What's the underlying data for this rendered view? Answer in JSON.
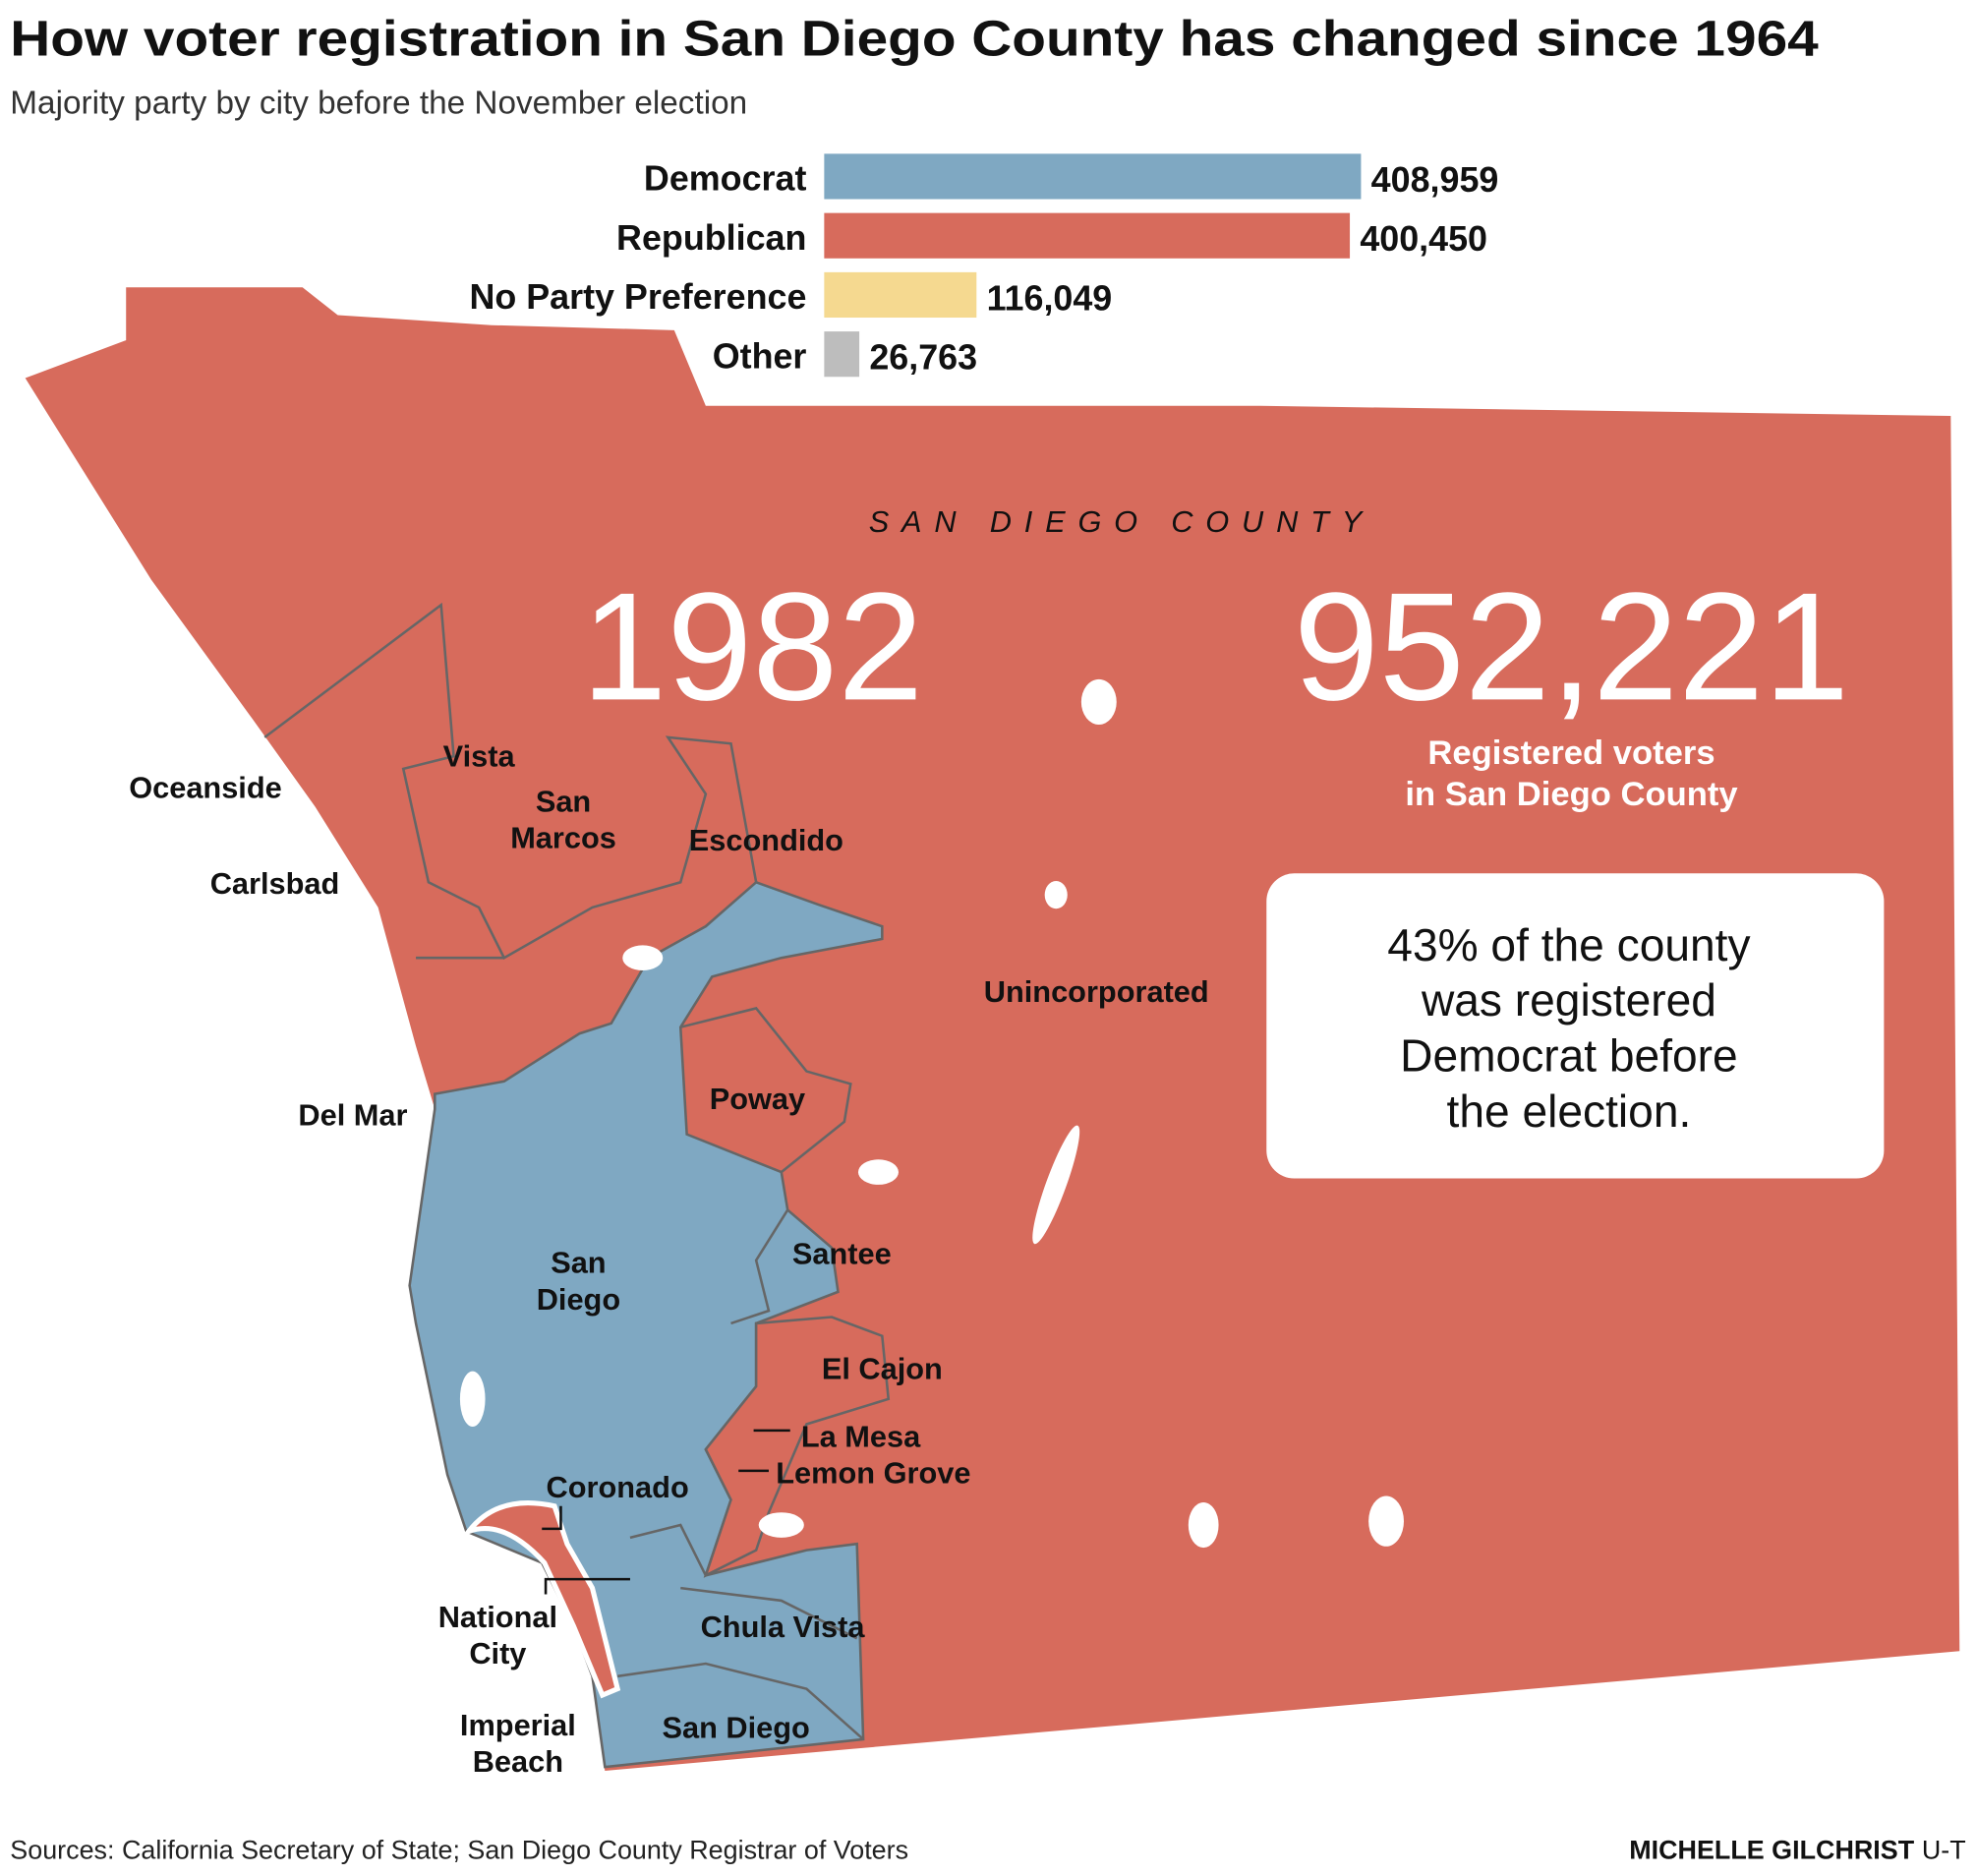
{
  "title": "How voter registration in San Diego County has changed since 1964",
  "subtitle": "Majority party by city before the November election",
  "chart_data": {
    "type": "bar",
    "orientation": "horizontal",
    "categories": [
      "Democrat",
      "Republican",
      "No Party Preference",
      "Other"
    ],
    "values": [
      408959,
      400450,
      116049,
      26763
    ],
    "value_labels": [
      "408,959",
      "400,450",
      "116,049",
      "26,763"
    ],
    "colors": [
      "#7fa8c2",
      "#d76b5c",
      "#f5d990",
      "#bdbdbd"
    ]
  },
  "map": {
    "county_label": "SAN DIEGO COUNTY",
    "year": "1982",
    "total": "952,221",
    "total_caption": [
      "Registered voters",
      "in San Diego County"
    ],
    "callout": [
      "43% of the county",
      "was registered",
      "Democrat before",
      "the election."
    ],
    "places": [
      {
        "lines": [
          "Oceanside"
        ]
      },
      {
        "lines": [
          "Vista"
        ]
      },
      {
        "lines": [
          "San",
          "Marcos"
        ]
      },
      {
        "lines": [
          "Escondido"
        ]
      },
      {
        "lines": [
          "Carlsbad"
        ]
      },
      {
        "lines": [
          "Unincorporated"
        ]
      },
      {
        "lines": [
          "Poway"
        ]
      },
      {
        "lines": [
          "Del Mar"
        ]
      },
      {
        "lines": [
          "Santee"
        ]
      },
      {
        "lines": [
          "San",
          "Diego"
        ]
      },
      {
        "lines": [
          "El Cajon"
        ]
      },
      {
        "lines": [
          "La Mesa"
        ]
      },
      {
        "lines": [
          "Lemon Grove"
        ]
      },
      {
        "lines": [
          "Coronado"
        ]
      },
      {
        "lines": [
          "National",
          "City"
        ]
      },
      {
        "lines": [
          "Chula Vista"
        ]
      },
      {
        "lines": [
          "Imperial",
          "Beach"
        ]
      },
      {
        "lines": [
          "San Diego"
        ]
      }
    ]
  },
  "footer": {
    "source": "Sources: California Secretary of State; San Diego County Registrar of Voters",
    "credit_name": "MICHELLE GILCHRIST",
    "credit_org": "U-T"
  }
}
